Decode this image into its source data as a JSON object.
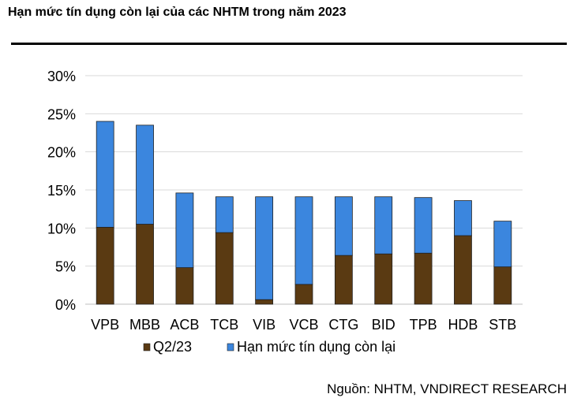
{
  "title": "Hạn mức tín dụng còn lại của các NHTM trong năm 2023",
  "source": "Nguồn: NHTM, VNDIRECT RESEARCH",
  "chart_data": {
    "type": "bar",
    "stacked": true,
    "categories": [
      "VPB",
      "MBB",
      "ACB",
      "TCB",
      "VIB",
      "VCB",
      "CTG",
      "BID",
      "TPB",
      "HDB",
      "STB"
    ],
    "series": [
      {
        "name": "Q2/23",
        "color": "#5a3a12",
        "values": [
          10.1,
          10.5,
          4.8,
          9.4,
          0.6,
          2.6,
          6.4,
          6.6,
          6.7,
          9.0,
          4.9
        ]
      },
      {
        "name": "Hạn mức tín dụng còn lại",
        "color": "#3b86de",
        "values": [
          13.9,
          13.0,
          9.8,
          4.7,
          13.5,
          11.5,
          7.7,
          7.5,
          7.3,
          4.6,
          6.0
        ]
      }
    ],
    "ylim": [
      0,
      30
    ],
    "yticks": [
      "0%",
      "5%",
      "10%",
      "15%",
      "20%",
      "25%",
      "30%"
    ],
    "ytick_values": [
      0,
      5,
      10,
      15,
      20,
      25,
      30
    ],
    "grid": true,
    "legend_position": "bottom-left"
  }
}
